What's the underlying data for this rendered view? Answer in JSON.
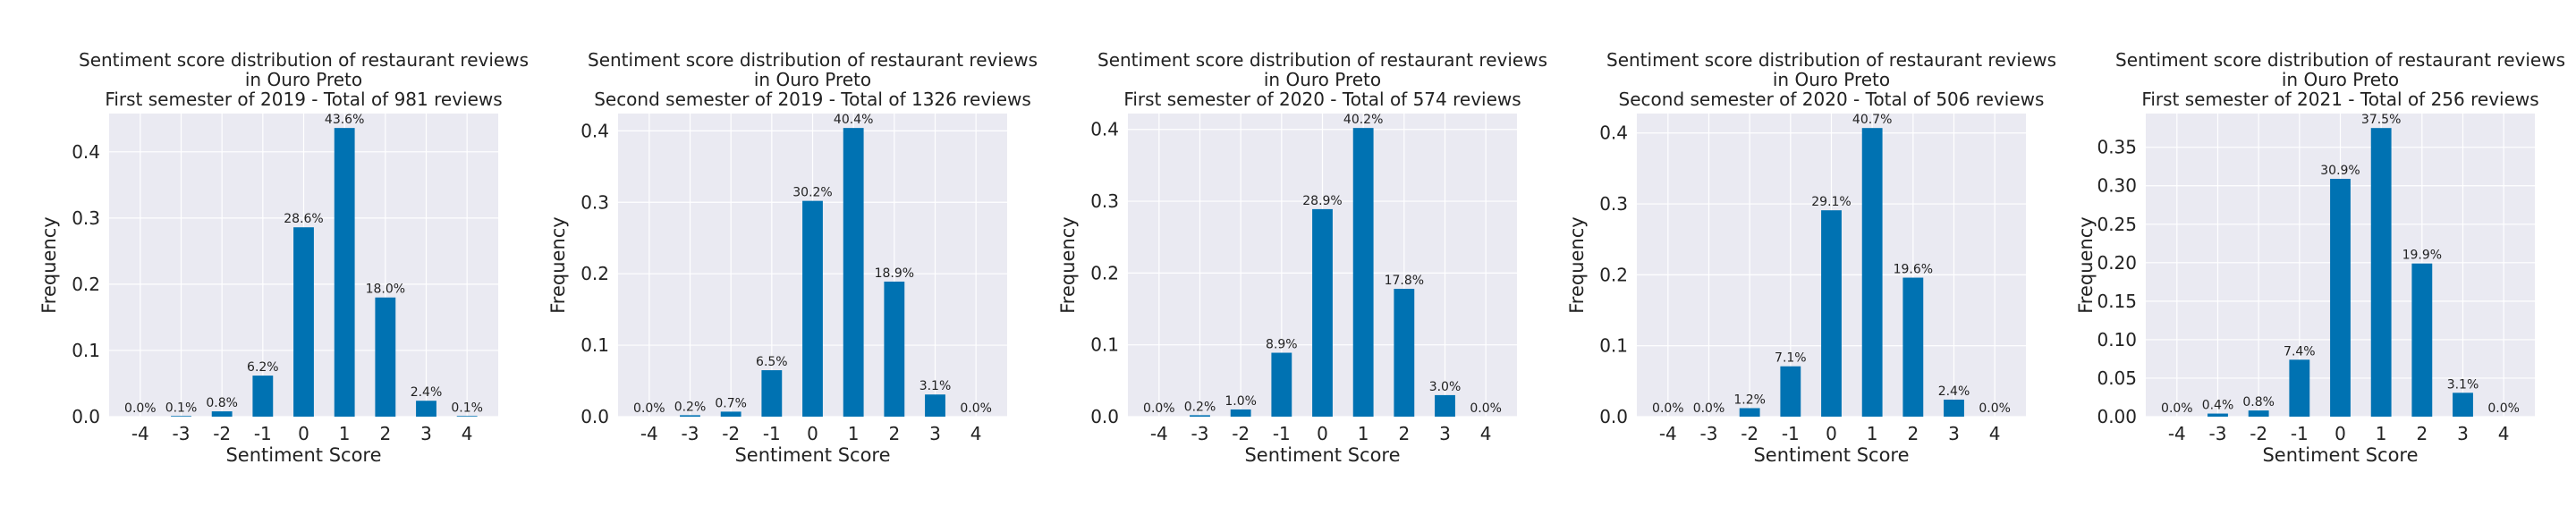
{
  "colors": {
    "bar": "#0072B2",
    "plot_bg": "#EAEAF2",
    "grid": "#FFFFFF",
    "text": "#222222"
  },
  "chart_data": [
    {
      "type": "bar",
      "title_lines": [
        "Sentiment score distribution of restaurant reviews",
        "in Ouro Preto",
        "First semester of 2019 - Total of 981 reviews"
      ],
      "xlabel": "Sentiment Score",
      "ylabel": "Frequency",
      "categories": [
        "-4",
        "-3",
        "-2",
        "-1",
        "0",
        "1",
        "2",
        "3",
        "4"
      ],
      "values": [
        0.0,
        0.001,
        0.008,
        0.062,
        0.286,
        0.436,
        0.18,
        0.024,
        0.001
      ],
      "data_labels": [
        "0.0%",
        "0.1%",
        "0.8%",
        "6.2%",
        "28.6%",
        "43.6%",
        "18.0%",
        "2.4%",
        "0.1%"
      ],
      "yticks": [
        0.0,
        0.1,
        0.2,
        0.3,
        0.4
      ],
      "ytick_labels": [
        "0.0",
        "0.1",
        "0.2",
        "0.3",
        "0.4"
      ],
      "ylim": [
        0,
        0.4578
      ],
      "grid": true
    },
    {
      "type": "bar",
      "title_lines": [
        "Sentiment score distribution of restaurant reviews",
        "in Ouro Preto",
        "Second semester of 2019 - Total of 1326 reviews"
      ],
      "xlabel": "Sentiment Score",
      "ylabel": "Frequency",
      "categories": [
        "-4",
        "-3",
        "-2",
        "-1",
        "0",
        "1",
        "2",
        "3",
        "4"
      ],
      "values": [
        0.0,
        0.002,
        0.007,
        0.065,
        0.302,
        0.404,
        0.189,
        0.031,
        0.0
      ],
      "data_labels": [
        "0.0%",
        "0.2%",
        "0.7%",
        "6.5%",
        "30.2%",
        "40.4%",
        "18.9%",
        "3.1%",
        "0.0%"
      ],
      "yticks": [
        0.0,
        0.1,
        0.2,
        0.3,
        0.4
      ],
      "ytick_labels": [
        "0.0",
        "0.1",
        "0.2",
        "0.3",
        "0.4"
      ],
      "ylim": [
        0,
        0.4242
      ],
      "grid": true
    },
    {
      "type": "bar",
      "title_lines": [
        "Sentiment score distribution of restaurant reviews",
        "in Ouro Preto",
        "First semester of 2020 - Total of 574 reviews"
      ],
      "xlabel": "Sentiment Score",
      "ylabel": "Frequency",
      "categories": [
        "-4",
        "-3",
        "-2",
        "-1",
        "0",
        "1",
        "2",
        "3",
        "4"
      ],
      "values": [
        0.0,
        0.002,
        0.01,
        0.089,
        0.289,
        0.402,
        0.178,
        0.03,
        0.0
      ],
      "data_labels": [
        "0.0%",
        "0.2%",
        "1.0%",
        "8.9%",
        "28.9%",
        "40.2%",
        "17.8%",
        "3.0%",
        "0.0%"
      ],
      "yticks": [
        0.0,
        0.1,
        0.2,
        0.3,
        0.4
      ],
      "ytick_labels": [
        "0.0",
        "0.1",
        "0.2",
        "0.3",
        "0.4"
      ],
      "ylim": [
        0,
        0.4221
      ],
      "grid": true
    },
    {
      "type": "bar",
      "title_lines": [
        "Sentiment score distribution of restaurant reviews",
        "in Ouro Preto",
        "Second semester of 2020 - Total of 506 reviews"
      ],
      "xlabel": "Sentiment Score",
      "ylabel": "Frequency",
      "categories": [
        "-4",
        "-3",
        "-2",
        "-1",
        "0",
        "1",
        "2",
        "3",
        "4"
      ],
      "values": [
        0.0,
        0.0,
        0.012,
        0.071,
        0.291,
        0.407,
        0.196,
        0.024,
        0.0
      ],
      "data_labels": [
        "0.0%",
        "0.0%",
        "1.2%",
        "7.1%",
        "29.1%",
        "40.7%",
        "19.6%",
        "2.4%",
        "0.0%"
      ],
      "yticks": [
        0.0,
        0.1,
        0.2,
        0.3,
        0.4
      ],
      "ytick_labels": [
        "0.0",
        "0.1",
        "0.2",
        "0.3",
        "0.4"
      ],
      "ylim": [
        0,
        0.4274
      ],
      "grid": true
    },
    {
      "type": "bar",
      "title_lines": [
        "Sentiment score distribution of restaurant reviews",
        "in Ouro Preto",
        "First semester of 2021 - Total of 256 reviews"
      ],
      "xlabel": "Sentiment Score",
      "ylabel": "Frequency",
      "categories": [
        "-4",
        "-3",
        "-2",
        "-1",
        "0",
        "1",
        "2",
        "3",
        "4"
      ],
      "values": [
        0.0,
        0.004,
        0.008,
        0.074,
        0.309,
        0.375,
        0.199,
        0.031,
        0.0
      ],
      "data_labels": [
        "0.0%",
        "0.4%",
        "0.8%",
        "7.4%",
        "30.9%",
        "37.5%",
        "19.9%",
        "3.1%",
        "0.0%"
      ],
      "yticks": [
        0.0,
        0.05,
        0.1,
        0.15,
        0.2,
        0.25,
        0.3,
        0.35
      ],
      "ytick_labels": [
        "0.00",
        "0.05",
        "0.10",
        "0.15",
        "0.20",
        "0.25",
        "0.30",
        "0.35"
      ],
      "ylim": [
        0,
        0.3938
      ],
      "grid": true
    }
  ]
}
